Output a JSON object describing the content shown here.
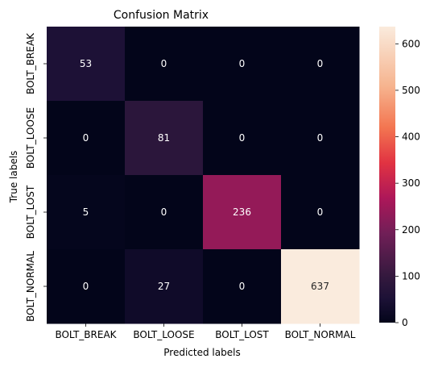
{
  "chart_data": {
    "type": "heatmap",
    "title": "Confusion Matrix",
    "xlabel": "Predicted labels",
    "ylabel": "True labels",
    "x_categories": [
      "BOLT_BREAK",
      "BOLT_LOOSE",
      "BOLT_LOST",
      "BOLT_NORMAL"
    ],
    "y_categories": [
      "BOLT_BREAK",
      "BOLT_LOOSE",
      "BOLT_LOST",
      "BOLT_NORMAL"
    ],
    "values": [
      [
        53,
        0,
        0,
        0
      ],
      [
        0,
        81,
        0,
        0
      ],
      [
        5,
        0,
        236,
        0
      ],
      [
        0,
        27,
        0,
        637
      ]
    ],
    "colorbar": {
      "range": [
        0,
        637
      ],
      "ticks": [
        0,
        100,
        200,
        300,
        400,
        500,
        600
      ],
      "colormap": "rocket"
    },
    "grid": false
  }
}
